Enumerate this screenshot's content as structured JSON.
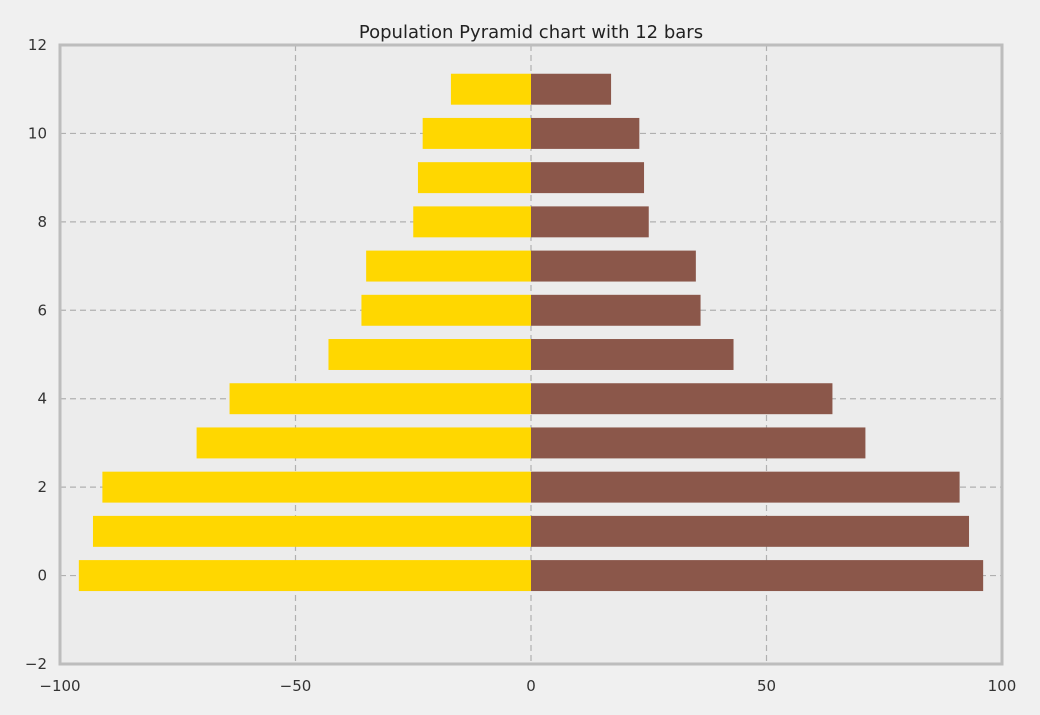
{
  "chart_data": {
    "type": "bar",
    "orientation": "horizontal",
    "title": "Population Pyramid chart with 12 bars",
    "xlabel": "",
    "ylabel": "",
    "xlim": [
      -100,
      100
    ],
    "ylim": [
      -2,
      12
    ],
    "xticks": [
      -100,
      -50,
      0,
      50,
      100
    ],
    "xtick_labels": [
      "−100",
      "−50",
      "0",
      "50",
      "100"
    ],
    "yticks": [
      -2,
      0,
      2,
      4,
      6,
      8,
      10,
      12
    ],
    "ytick_labels": [
      "−2",
      "0",
      "2",
      "4",
      "6",
      "8",
      "10",
      "12"
    ],
    "grid": true,
    "categories": [
      0,
      1,
      2,
      3,
      4,
      5,
      6,
      7,
      8,
      9,
      10,
      11
    ],
    "series": [
      {
        "color": "#ffd700",
        "values": [
          -96,
          -93,
          -91,
          -71,
          -64,
          -43,
          -36,
          -35,
          -25,
          -24,
          -23,
          -17
        ]
      },
      {
        "color": "#8b574a",
        "values": [
          96,
          93,
          91,
          71,
          64,
          43,
          36,
          35,
          25,
          24,
          23,
          17
        ]
      }
    ],
    "colors": {
      "plot_bg": "#ececec",
      "page_bg": "#f0f0f0",
      "frame": "#bdbdbd",
      "grid": "#b0b0b0"
    }
  }
}
